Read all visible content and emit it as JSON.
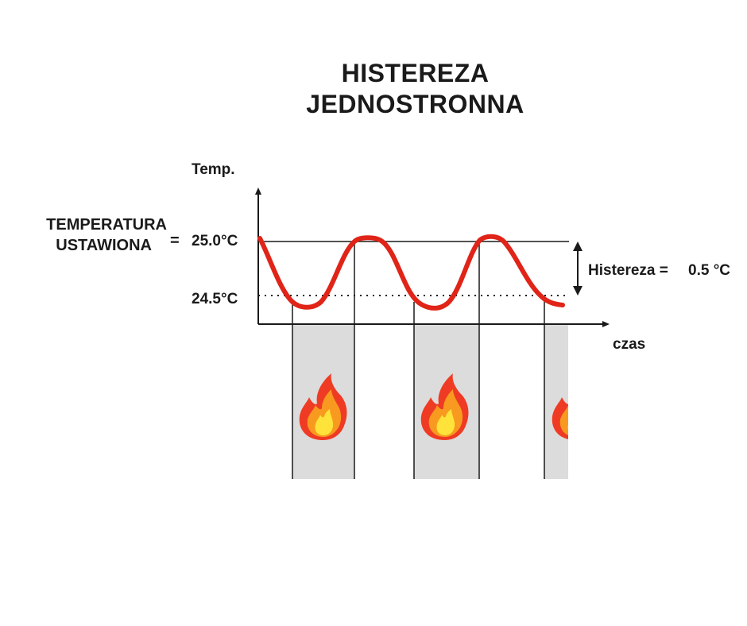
{
  "title": {
    "line1": "HISTEREZA",
    "line2": "JEDNOSTRONNA"
  },
  "axes": {
    "y_label": "Temp.",
    "x_label": "czas"
  },
  "setpoint": {
    "label_line1": "TEMPERATURA",
    "label_line2": "USTAWIONA",
    "equals": "=",
    "value_text": "25.0°C"
  },
  "lower_threshold": {
    "value_text": "24.5°C"
  },
  "hysteresis": {
    "label": "Histereza =",
    "value_text": "0.5 °C"
  },
  "colors": {
    "curve": "#e02418",
    "heating_band": "#dcdcdc",
    "axis": "#1a1a1a",
    "flame_outer": "#ef3b24",
    "flame_middle": "#f79a1f",
    "flame_inner": "#ffe23a"
  },
  "icons": {
    "heating": "flame-icon"
  },
  "heating_periods_count": 3
}
